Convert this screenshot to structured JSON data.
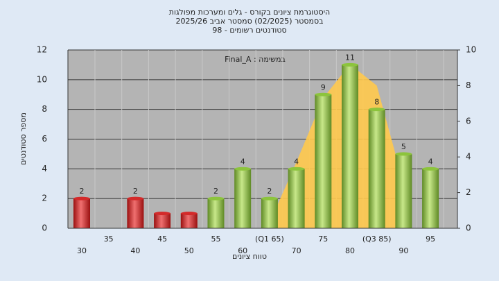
{
  "chart_data": {
    "type": "bar",
    "title": [
      "היסטוגרמת ציונים בקורס - גלים ומערכות מפולגות",
      "בסמסטר  (02/2025)  סמסטר אביב 2025/26",
      "סטודנטים רשומים - 98"
    ],
    "annotation": "במשימה : Final_A",
    "y_label": "מספר סטודנטים",
    "x_label": "טווח ציונים",
    "categories": [
      "30",
      "35",
      "40",
      "45",
      "50",
      "55",
      "60",
      "(Q1 65)",
      "70",
      "75",
      "80",
      "(Q3 85)",
      "90",
      "95"
    ],
    "values": [
      2,
      0,
      2,
      1,
      1,
      2,
      4,
      2,
      4,
      9,
      11,
      8,
      5,
      4
    ],
    "value_labels": [
      "2",
      null,
      "2",
      null,
      null,
      "2",
      "4",
      "2",
      "4",
      "9",
      "11",
      "8",
      "5",
      "4"
    ],
    "colors": [
      "#d42a2a",
      "#d42a2a",
      "#d42a2a",
      "#d42a2a",
      "#d42a2a",
      "#8cc43c",
      "#8cc43c",
      "#8cc43c",
      "#8cc43c",
      "#8cc43c",
      "#8cc43c",
      "#8cc43c",
      "#8cc43c",
      "#8cc43c"
    ],
    "overlay": {
      "axis": "y2",
      "color": "#ffc94d",
      "values": [
        null,
        null,
        null,
        null,
        null,
        null,
        null,
        0.3,
        3.7,
        7.3,
        9.2,
        8.0,
        2.5,
        null
      ]
    },
    "ylim": [
      0,
      12
    ],
    "yticks": [
      0,
      2,
      4,
      6,
      8,
      10,
      12
    ],
    "y2lim": [
      0,
      10
    ],
    "y2ticks": [
      0,
      2,
      4,
      6,
      8,
      10
    ],
    "grid": true
  }
}
